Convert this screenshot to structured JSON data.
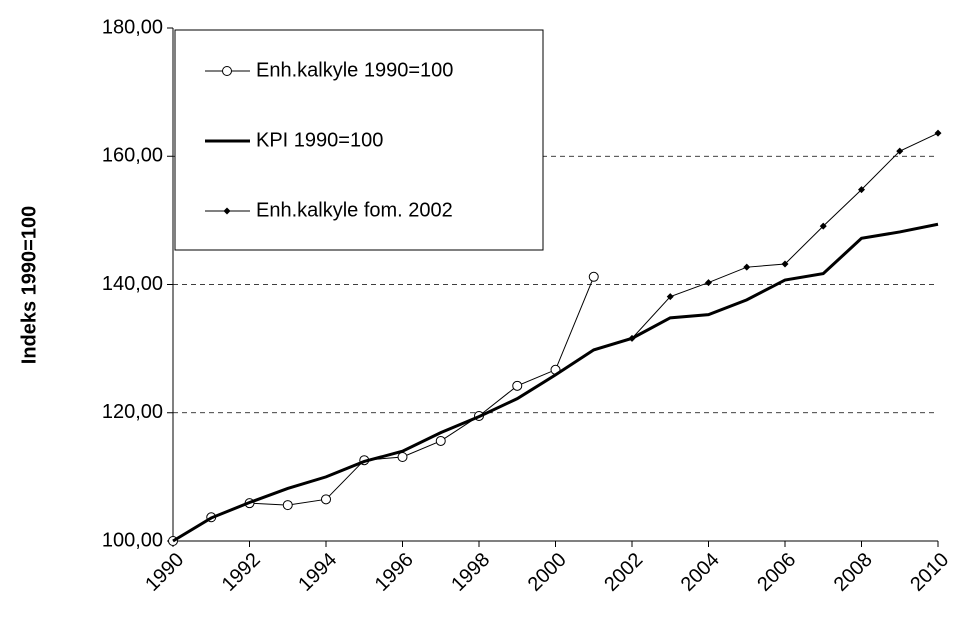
{
  "chart_data": {
    "type": "line",
    "y_label": "Indeks 1990=100",
    "x": [
      1990,
      1991,
      1992,
      1993,
      1994,
      1995,
      1996,
      1997,
      1998,
      1999,
      2000,
      2001,
      2002,
      2003,
      2004,
      2005,
      2006,
      2007,
      2008,
      2009,
      2010
    ],
    "xlim": [
      1990,
      2010
    ],
    "xticks": [
      1990,
      1992,
      1994,
      1996,
      1998,
      2000,
      2002,
      2004,
      2006,
      2008,
      2010
    ],
    "ylim": [
      100,
      180
    ],
    "yticks": [
      {
        "value": 100,
        "label": "100,00"
      },
      {
        "value": 120,
        "label": "120,00"
      },
      {
        "value": 140,
        "label": "140,00"
      },
      {
        "value": 160,
        "label": "160,00"
      },
      {
        "value": 180,
        "label": "180,00"
      }
    ],
    "grid": true,
    "legend": "upper left",
    "series": [
      {
        "name": "Enh.kalkyle 1990=100",
        "color": "#000000",
        "marker": "circle",
        "values": [
          100,
          103.7,
          105.9,
          105.6,
          106.5,
          112.6,
          113.1,
          115.6,
          119.5,
          124.2,
          126.7,
          141.2,
          null,
          null,
          null,
          null,
          null,
          null,
          null,
          null,
          null
        ]
      },
      {
        "name": "KPI 1990=100",
        "color": "#000000",
        "marker": "none",
        "values": [
          100,
          103.6,
          106,
          108.2,
          110,
          112.4,
          114,
          116.9,
          119.4,
          122.2,
          125.9,
          129.8,
          131.6,
          134.8,
          135.3,
          137.6,
          140.7,
          141.7,
          147.2,
          148.2,
          149.4
        ]
      },
      {
        "name": "Enh.kalkyle fom. 2002",
        "color": "#000000",
        "marker": "diamond",
        "values": [
          null,
          null,
          null,
          null,
          null,
          null,
          null,
          null,
          null,
          null,
          null,
          null,
          131.6,
          138.1,
          140.3,
          142.7,
          143.2,
          149.1,
          154.8,
          160.8,
          163.6
        ]
      }
    ]
  }
}
